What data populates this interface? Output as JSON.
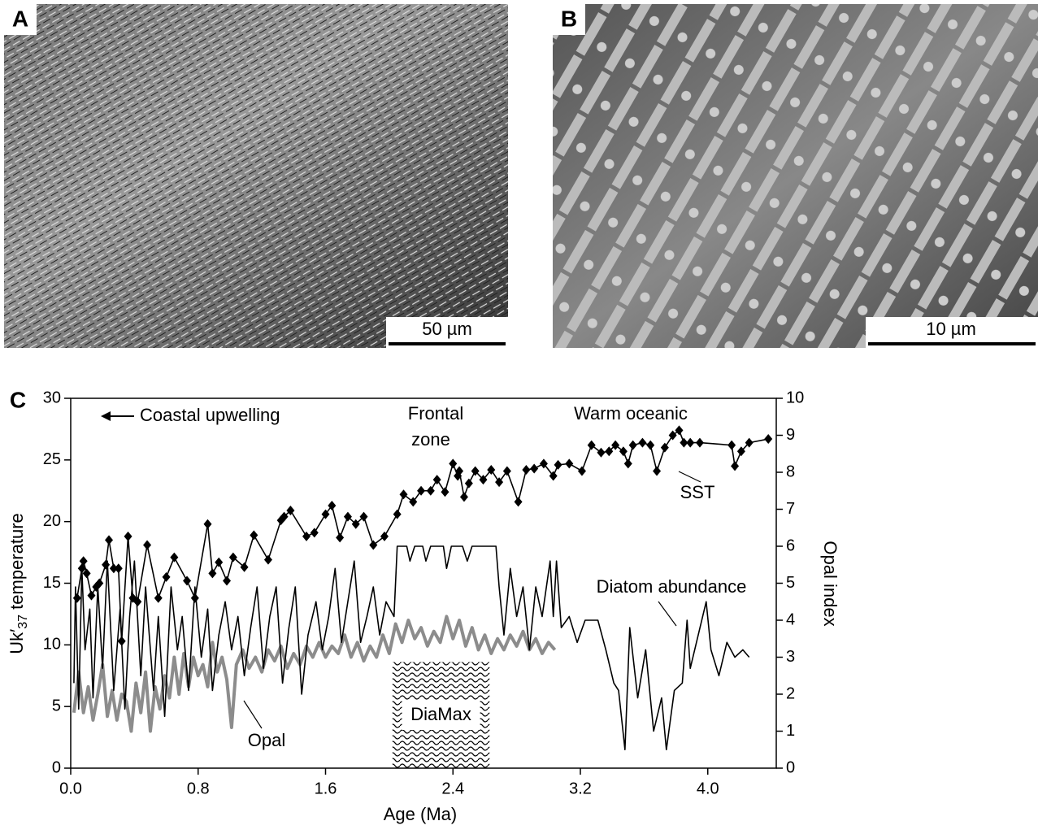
{
  "panels": {
    "a": {
      "letter": "A",
      "scale_bar": "50 µm"
    },
    "b": {
      "letter": "B",
      "scale_bar": "10 µm"
    }
  },
  "chart_data": {
    "type": "line",
    "panel_letter": "C",
    "xlabel": "Age (Ma)",
    "ylabel_parts": [
      "Uk′",
      "37",
      " temperature"
    ],
    "y2label": "Opal index",
    "xlim": [
      0,
      4.43
    ],
    "ylim": [
      0,
      30
    ],
    "y2lim": [
      0,
      10
    ],
    "xticks": [
      {
        "value": 0,
        "label": "0.0"
      },
      0.8,
      1.6,
      2.4,
      3.2,
      {
        "value": 4,
        "label": "4.0"
      }
    ],
    "yticks": [
      0,
      5,
      10,
      15,
      20,
      25,
      30
    ],
    "y2ticks": [
      0,
      1,
      2,
      3,
      4,
      5,
      6,
      7,
      8,
      9,
      10
    ],
    "annotations": [
      "Coastal upwelling",
      "Frontal",
      "zone",
      "Warm oceanic"
    ],
    "shaded_range": {
      "label": "DiaMax",
      "x": [
        2.02,
        2.63
      ],
      "y": [
        0,
        8.6
      ]
    },
    "series": [
      {
        "name": "SST",
        "color": "#000000",
        "marker": "diamond",
        "axis": "y",
        "x": [
          0.04,
          0.07,
          0.08,
          0.1,
          0.13,
          0.16,
          0.18,
          0.22,
          0.24,
          0.27,
          0.3,
          0.32,
          0.36,
          0.39,
          0.42,
          0.48,
          0.55,
          0.6,
          0.65,
          0.73,
          0.78,
          0.86,
          0.89,
          0.93,
          0.98,
          1.02,
          1.09,
          1.15,
          1.24,
          1.32,
          1.34,
          1.38,
          1.48,
          1.53,
          1.6,
          1.64,
          1.69,
          1.74,
          1.79,
          1.84,
          1.9,
          1.97,
          2.05,
          2.09,
          2.15,
          2.2,
          2.26,
          2.3,
          2.35,
          2.4,
          2.43,
          2.44,
          2.47,
          2.5,
          2.54,
          2.59,
          2.64,
          2.69,
          2.74,
          2.81,
          2.86,
          2.91,
          2.97,
          3.03,
          3.06,
          3.13,
          3.21,
          3.27,
          3.33,
          3.38,
          3.42,
          3.47,
          3.5,
          3.53,
          3.59,
          3.64,
          3.68,
          3.73,
          3.78,
          3.82,
          3.85,
          3.89,
          3.95,
          4.15,
          4.17,
          4.21,
          4.26,
          4.38
        ],
        "values": [
          13.8,
          16.2,
          16.8,
          15.8,
          14.0,
          14.7,
          15.0,
          16.5,
          18.5,
          16.2,
          16.2,
          10.3,
          18.8,
          13.8,
          13.5,
          18.1,
          13.8,
          15.5,
          17.1,
          15.2,
          13.8,
          19.8,
          15.8,
          16.7,
          15.2,
          17.1,
          16.3,
          18.9,
          16.9,
          20.1,
          20.4,
          20.9,
          18.8,
          19.1,
          20.6,
          21.3,
          18.7,
          20.4,
          19.8,
          20.4,
          18.1,
          18.8,
          20.6,
          22.2,
          21.6,
          22.5,
          22.5,
          23.4,
          22.4,
          24.7,
          23.7,
          24.1,
          22.0,
          23.1,
          24.1,
          23.4,
          24.2,
          23.2,
          24.1,
          21.6,
          24.2,
          24.3,
          24.7,
          23.7,
          24.6,
          24.7,
          24.1,
          26.2,
          25.6,
          25.7,
          26.2,
          25.7,
          24.7,
          26.2,
          26.4,
          26.2,
          24.1,
          26.0,
          27.0,
          27.4,
          26.4,
          26.4,
          26.4,
          26.2,
          24.5,
          25.7,
          26.4,
          26.7
        ]
      },
      {
        "name": "Diatom abundance",
        "color": "#000000",
        "axis": "y2",
        "x": [
          0.02,
          0.03,
          0.05,
          0.07,
          0.09,
          0.12,
          0.14,
          0.17,
          0.2,
          0.23,
          0.27,
          0.31,
          0.34,
          0.37,
          0.4,
          0.44,
          0.47,
          0.52,
          0.55,
          0.59,
          0.63,
          0.67,
          0.7,
          0.74,
          0.78,
          0.82,
          0.86,
          0.89,
          0.93,
          0.97,
          1.01,
          1.05,
          1.09,
          1.13,
          1.17,
          1.21,
          1.25,
          1.29,
          1.33,
          1.37,
          1.41,
          1.45,
          1.49,
          1.54,
          1.58,
          1.62,
          1.66,
          1.7,
          1.74,
          1.78,
          1.82,
          1.86,
          1.9,
          1.94,
          1.98,
          2.03,
          2.05,
          2.11,
          2.13,
          2.16,
          2.21,
          2.23,
          2.26,
          2.34,
          2.36,
          2.39,
          2.46,
          2.49,
          2.52,
          2.67,
          2.69,
          2.72,
          2.76,
          2.8,
          2.84,
          2.88,
          2.92,
          2.96,
          3.01,
          3.03,
          3.05,
          3.08,
          3.13,
          3.18,
          3.23,
          3.31,
          3.36,
          3.41,
          3.44,
          3.48,
          3.51,
          3.56,
          3.61,
          3.66,
          3.71,
          3.74,
          3.79,
          3.84,
          3.87,
          3.89,
          3.94,
          3.99,
          4.02,
          4.07,
          4.12,
          4.17,
          4.22,
          4.26
        ],
        "values": [
          2.3,
          4.9,
          1.6,
          5.4,
          3.2,
          4.3,
          1.9,
          4.9,
          2.7,
          5.6,
          2.1,
          4.3,
          1.6,
          4.1,
          5.6,
          2.5,
          4.9,
          2.1,
          4.1,
          1.4,
          4.9,
          3.2,
          4.1,
          2.1,
          4.9,
          3.0,
          4.3,
          2.1,
          3.6,
          4.5,
          3.2,
          4.1,
          2.5,
          3.8,
          4.9,
          2.7,
          4.1,
          4.9,
          2.3,
          3.8,
          4.9,
          2.0,
          3.6,
          4.5,
          3.2,
          4.1,
          5.4,
          3.4,
          4.5,
          5.6,
          3.4,
          4.1,
          4.9,
          3.6,
          4.5,
          4.1,
          6.0,
          6.0,
          5.6,
          6.0,
          6.0,
          5.6,
          6.0,
          6.0,
          5.4,
          6.0,
          6.0,
          5.6,
          6.0,
          6.0,
          4.9,
          3.6,
          5.4,
          4.1,
          4.9,
          3.2,
          4.9,
          4.1,
          5.6,
          4.1,
          5.6,
          3.8,
          4.1,
          3.4,
          4.0,
          4.0,
          3.2,
          2.3,
          2.1,
          0.5,
          3.8,
          1.9,
          3.2,
          1.0,
          1.9,
          0.5,
          2.1,
          2.3,
          4.0,
          2.7,
          3.6,
          4.5,
          3.2,
          2.5,
          3.4,
          3.0,
          3.2,
          3.0
        ]
      },
      {
        "name": "Opal",
        "color": "#8c8c8c",
        "axis": "y2",
        "x": [
          0.02,
          0.05,
          0.08,
          0.11,
          0.14,
          0.17,
          0.2,
          0.23,
          0.26,
          0.29,
          0.32,
          0.35,
          0.38,
          0.41,
          0.44,
          0.47,
          0.5,
          0.53,
          0.56,
          0.59,
          0.62,
          0.65,
          0.68,
          0.71,
          0.74,
          0.77,
          0.8,
          0.83,
          0.86,
          0.89,
          0.92,
          0.95,
          0.98,
          1.01,
          1.04,
          1.08,
          1.12,
          1.16,
          1.2,
          1.24,
          1.28,
          1.32,
          1.36,
          1.4,
          1.44,
          1.48,
          1.52,
          1.56,
          1.6,
          1.64,
          1.68,
          1.72,
          1.76,
          1.8,
          1.84,
          1.88,
          1.92,
          1.96,
          2.0,
          2.04,
          2.08,
          2.12,
          2.16,
          2.2,
          2.24,
          2.28,
          2.32,
          2.36,
          2.4,
          2.44,
          2.48,
          2.52,
          2.56,
          2.6,
          2.64,
          2.68,
          2.72,
          2.76,
          2.8,
          2.84,
          2.88,
          2.92,
          2.96,
          3.0,
          3.04
        ],
        "values": [
          1.5,
          2.6,
          1.5,
          2.2,
          1.3,
          2.0,
          2.8,
          1.4,
          2.1,
          1.3,
          2.0,
          1.8,
          1.0,
          2.3,
          1.5,
          2.6,
          1.0,
          2.2,
          1.6,
          2.5,
          1.9,
          3.0,
          2.0,
          3.1,
          2.2,
          3.0,
          2.5,
          2.8,
          2.2,
          3.4,
          2.6,
          3.0,
          2.4,
          1.1,
          2.8,
          3.2,
          2.7,
          3.0,
          2.6,
          3.2,
          2.9,
          3.3,
          2.7,
          3.1,
          2.8,
          3.3,
          3.0,
          3.4,
          3.0,
          3.3,
          3.1,
          3.6,
          3.0,
          3.4,
          2.9,
          3.3,
          3.0,
          3.6,
          3.1,
          3.9,
          3.4,
          4.0,
          3.5,
          3.8,
          3.3,
          3.7,
          3.4,
          4.1,
          3.5,
          4.0,
          3.3,
          3.8,
          3.2,
          3.6,
          3.1,
          3.5,
          3.2,
          3.6,
          3.3,
          3.7,
          3.2,
          3.5,
          3.1,
          3.4,
          3.2
        ]
      }
    ]
  }
}
